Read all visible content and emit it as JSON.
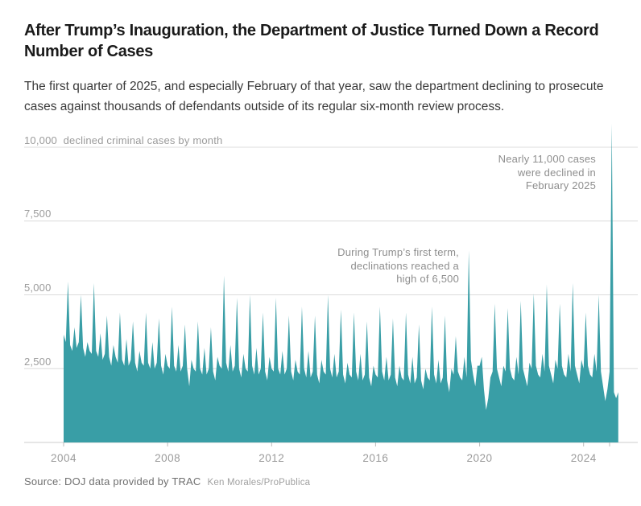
{
  "header": {
    "title": "After Trump’s Inauguration, the Department of Justice Turned Down a Record Number of Cases",
    "subtitle": "The first quarter of 2025, and especially February of that year, saw the department declining to prosecute cases against thousands of defendants outside of its regular six-month review process."
  },
  "chart_data": {
    "type": "area",
    "unit_label": "declined criminal cases by month",
    "x_start": "2004-01",
    "x_end": "2025-05",
    "x_ticks": [
      {
        "year": 2004,
        "label": "2004"
      },
      {
        "year": 2008,
        "label": "2008"
      },
      {
        "year": 2012,
        "label": "2012"
      },
      {
        "year": 2016,
        "label": "2016"
      },
      {
        "year": 2020,
        "label": "2020"
      },
      {
        "year": 2024,
        "label": "2024"
      },
      {
        "year": 2025,
        "label": ""
      }
    ],
    "y_ticks": [
      2500,
      5000,
      7500,
      10000
    ],
    "y_tick_labels": [
      "2,500",
      "5,000",
      "7,500",
      "10,000"
    ],
    "ylim": [
      0,
      11200
    ],
    "grid": "horizontal",
    "legend": "none",
    "colors": {
      "area": "#399EA6",
      "grid": "#dcdcdc",
      "axis": "#cccccc",
      "tick": "#bbbbbb"
    },
    "annotations": [
      {
        "id": "feb2025",
        "lines": [
          "Nearly 11,000 cases",
          "were declined in",
          "February 2025"
        ]
      },
      {
        "id": "trump-first-term",
        "lines": [
          "During Trump’s first term,",
          "declinations reached a",
          "high of 6,500"
        ]
      }
    ],
    "series": [
      {
        "name": "Declined criminal cases by month",
        "frequency": "monthly",
        "values": [
          3650,
          3400,
          5450,
          3300,
          3100,
          3900,
          3200,
          3400,
          5000,
          3200,
          2900,
          3400,
          3100,
          3000,
          5400,
          3100,
          2900,
          3700,
          2800,
          3000,
          4300,
          2900,
          2600,
          3300,
          2900,
          2700,
          4400,
          2800,
          2600,
          3500,
          2600,
          2800,
          4100,
          2700,
          2400,
          3100,
          2700,
          2600,
          4400,
          2700,
          2500,
          3400,
          2500,
          2700,
          4200,
          2600,
          2300,
          3000,
          2600,
          2500,
          4600,
          2600,
          2400,
          3300,
          2400,
          2600,
          4000,
          2500,
          1900,
          2800,
          2500,
          2400,
          4100,
          2500,
          2300,
          3200,
          2300,
          2500,
          3900,
          2400,
          2100,
          2900,
          2600,
          2500,
          5650,
          2700,
          2400,
          3300,
          2400,
          2600,
          4900,
          2500,
          2200,
          3000,
          2500,
          2400,
          5000,
          2600,
          2300,
          3200,
          2300,
          2500,
          4400,
          2400,
          2100,
          2900,
          2500,
          2400,
          4900,
          2500,
          2300,
          3100,
          2300,
          2500,
          4300,
          2400,
          2100,
          2800,
          2400,
          2300,
          4600,
          2500,
          2200,
          3100,
          2200,
          2400,
          4300,
          2300,
          2000,
          2800,
          2400,
          2300,
          5000,
          2500,
          2200,
          3000,
          2200,
          2400,
          4500,
          2300,
          2000,
          2700,
          2300,
          2200,
          4400,
          2400,
          2100,
          3000,
          2100,
          2300,
          4100,
          2200,
          1900,
          2600,
          2300,
          2200,
          4600,
          2400,
          2100,
          2900,
          2100,
          2300,
          4200,
          2200,
          1900,
          2600,
          2200,
          2100,
          4400,
          2300,
          2000,
          2900,
          2000,
          2200,
          4000,
          2100,
          1800,
          2500,
          2200,
          2100,
          4600,
          2300,
          2000,
          2800,
          2000,
          2200,
          4300,
          2100,
          1700,
          2500,
          2300,
          3600,
          2400,
          2200,
          2100,
          2900,
          2200,
          6500,
          2800,
          2300,
          1900,
          2600,
          2600,
          2900,
          1800,
          1100,
          1500,
          2200,
          2400,
          4700,
          2500,
          2200,
          1900,
          2600,
          2400,
          4550,
          2500,
          2200,
          2100,
          2900,
          2300,
          4800,
          2500,
          2200,
          1900,
          2700,
          2500,
          5050,
          2600,
          2300,
          2200,
          3000,
          2400,
          5350,
          2600,
          2300,
          2000,
          2800,
          2500,
          4700,
          2600,
          2300,
          2200,
          3000,
          2400,
          5400,
          2600,
          2300,
          2000,
          2800,
          2500,
          4400,
          2600,
          2300,
          2200,
          3000,
          2400,
          5000,
          2400,
          1900,
          1400,
          1800,
          2400,
          10800,
          1700,
          1500,
          1700
        ]
      }
    ]
  },
  "footer": {
    "source": "Source: DOJ data provided by TRAC",
    "credit": "Ken Morales/ProPublica"
  }
}
